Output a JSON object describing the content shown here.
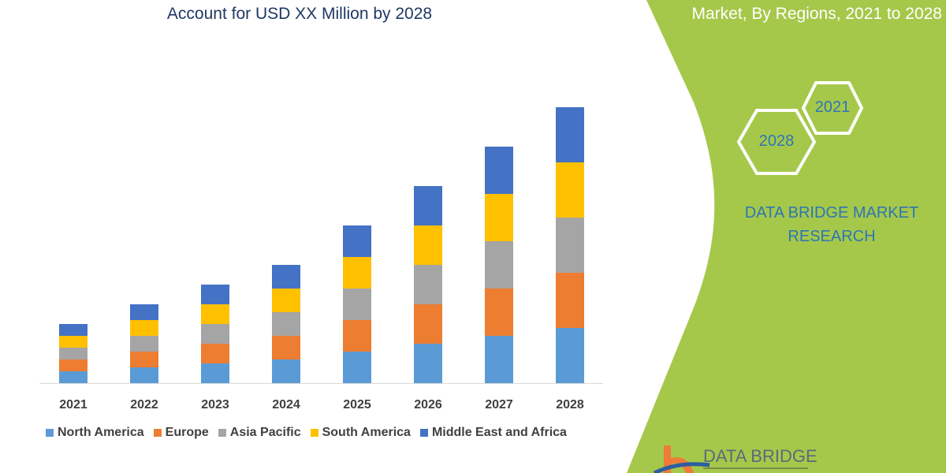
{
  "header": {
    "title_left": "Account for USD XX Million by 2028",
    "title_right": "Market, By Regions, 2021 to 2028"
  },
  "side_panel": {
    "hex_2021": "2021",
    "hex_2028": "2028",
    "brand": "DATA BRIDGE MARKET RESEARCH",
    "logo_text": "DATA BRIDGE",
    "panel_color": "#a5c84a"
  },
  "chart_data": {
    "type": "bar",
    "stacked": true,
    "categories": [
      "2021",
      "2022",
      "2023",
      "2024",
      "2025",
      "2026",
      "2027",
      "2028"
    ],
    "series": [
      {
        "name": "North America",
        "color": "#5b9bd5",
        "values": [
          15,
          20,
          25,
          30,
          40,
          50,
          60,
          70
        ]
      },
      {
        "name": "Europe",
        "color": "#ed7d31",
        "values": [
          15,
          20,
          25,
          30,
          40,
          50,
          60,
          70
        ]
      },
      {
        "name": "Asia Pacific",
        "color": "#a5a5a5",
        "values": [
          15,
          20,
          25,
          30,
          40,
          50,
          60,
          70
        ]
      },
      {
        "name": "South America",
        "color": "#ffc000",
        "values": [
          15,
          20,
          25,
          30,
          40,
          50,
          60,
          70
        ]
      },
      {
        "name": "Middle East and Africa",
        "color": "#4472c4",
        "values": [
          15,
          20,
          25,
          30,
          40,
          50,
          60,
          70
        ]
      }
    ],
    "title": "",
    "xlabel": "",
    "ylabel": "",
    "ylim": [
      0,
      360
    ],
    "grid": false,
    "legend": "bottom"
  }
}
